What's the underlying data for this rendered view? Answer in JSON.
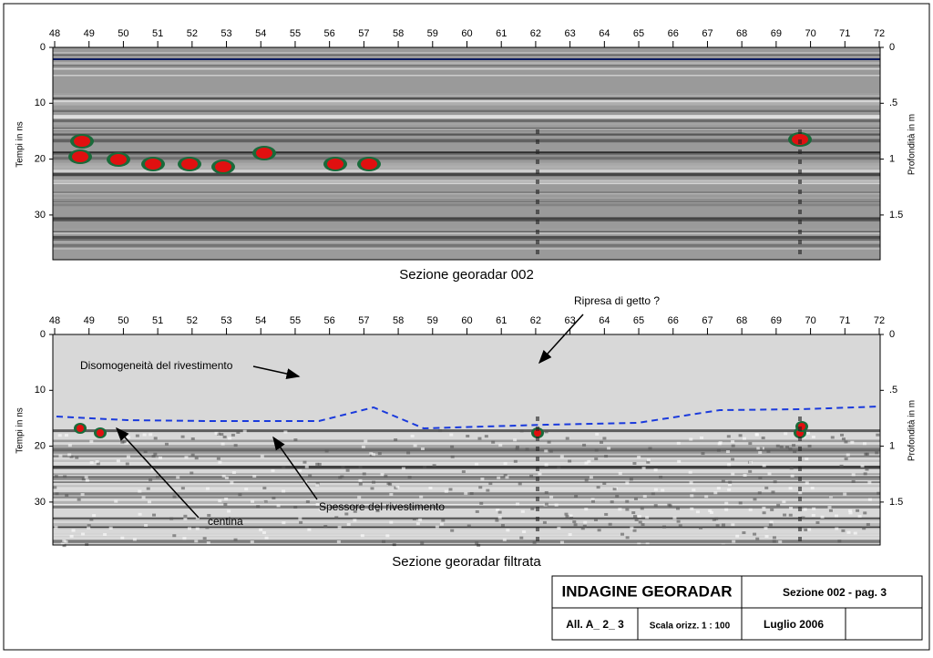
{
  "panels": [
    {
      "x_ticks": [
        "48",
        "49",
        "50",
        "51",
        "52",
        "53",
        "54",
        "55",
        "56",
        "57",
        "58",
        "59",
        "60",
        "61",
        "62",
        "63",
        "64",
        "65",
        "66",
        "67",
        "68",
        "69",
        "70",
        "71",
        "72"
      ],
      "y_ticks_left": [
        "0",
        "10",
        "20",
        "30"
      ],
      "y_ticks_right": [
        "0",
        ".5",
        "1",
        "1.5"
      ],
      "y_label_left": "Tempi in ns",
      "y_label_right": "Profondità in m",
      "caption": "Sezione georadar 002"
    },
    {
      "x_ticks": [
        "48",
        "49",
        "50",
        "51",
        "52",
        "53",
        "54",
        "55",
        "56",
        "57",
        "58",
        "59",
        "60",
        "61",
        "62",
        "63",
        "64",
        "65",
        "66",
        "67",
        "68",
        "69",
        "70",
        "71",
        "72"
      ],
      "y_ticks_left": [
        "0",
        "10",
        "20",
        "30"
      ],
      "y_ticks_right": [
        "0",
        ".5",
        "1",
        "1.5"
      ],
      "y_label_left": "Tempi in ns",
      "y_label_right": "Profondità in m",
      "caption": "Sezione georadar filtrata",
      "annotations": [
        "Ripresa di getto ?",
        "Disomogeneità del rivestimento",
        "Spessore del rivestimento",
        "centina"
      ]
    }
  ],
  "title_block": {
    "title": "INDAGINE GEORADAR",
    "section": "Sezione 002 - pag.  3",
    "attachment": "All. A_ 2_ 3",
    "scale": "Scala orizz. 1 :  100",
    "date": "Luglio 2006"
  }
}
